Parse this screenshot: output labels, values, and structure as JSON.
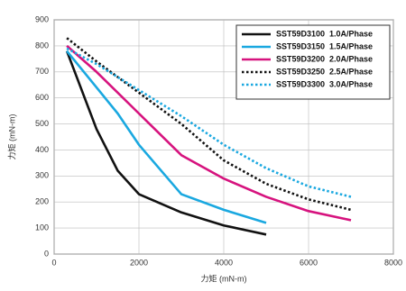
{
  "chart_data": {
    "type": "line",
    "x_label": "力矩 (mN-m)",
    "y_label": "力矩 (mN-m)",
    "xlim": [
      0,
      8000
    ],
    "xticks": [
      0,
      2000,
      4000,
      6000,
      8000
    ],
    "ylim": [
      0,
      900
    ],
    "yticks": [
      0,
      100,
      200,
      300,
      400,
      500,
      600,
      700,
      800,
      900
    ],
    "grid": true,
    "legend": "upper right",
    "series": [
      {
        "name": "SST59D3100  1.0A/Phase",
        "color": "#111111",
        "dashed": false,
        "x": [
          300,
          1000,
          1500,
          2000,
          3000,
          4000,
          5000
        ],
        "values": [
          780,
          480,
          320,
          230,
          160,
          110,
          75
        ]
      },
      {
        "name": "SST59D3150  1.5A/Phase",
        "color": "#1aa8e0",
        "dashed": false,
        "x": [
          300,
          1000,
          1500,
          2000,
          3000,
          4000,
          5000
        ],
        "values": [
          780,
          640,
          540,
          420,
          230,
          170,
          120
        ]
      },
      {
        "name": "SST59D3200  2.0A/Phase",
        "color": "#d6137e",
        "dashed": false,
        "x": [
          300,
          1000,
          2000,
          3000,
          4000,
          5000,
          6000,
          7000
        ],
        "values": [
          800,
          700,
          540,
          380,
          290,
          220,
          165,
          130
        ]
      },
      {
        "name": "SST59D3250  2.5A/Phase",
        "color": "#111111",
        "dashed": true,
        "x": [
          300,
          1000,
          2000,
          3000,
          4000,
          5000,
          6000,
          7000
        ],
        "values": [
          830,
          740,
          620,
          500,
          360,
          270,
          210,
          170
        ]
      },
      {
        "name": "SST59D3300  3.0A/Phase",
        "color": "#1aa8e0",
        "dashed": true,
        "x": [
          300,
          1000,
          2000,
          3000,
          4000,
          5000,
          6000,
          7000
        ],
        "values": [
          790,
          730,
          630,
          530,
          420,
          330,
          260,
          220
        ]
      }
    ]
  }
}
